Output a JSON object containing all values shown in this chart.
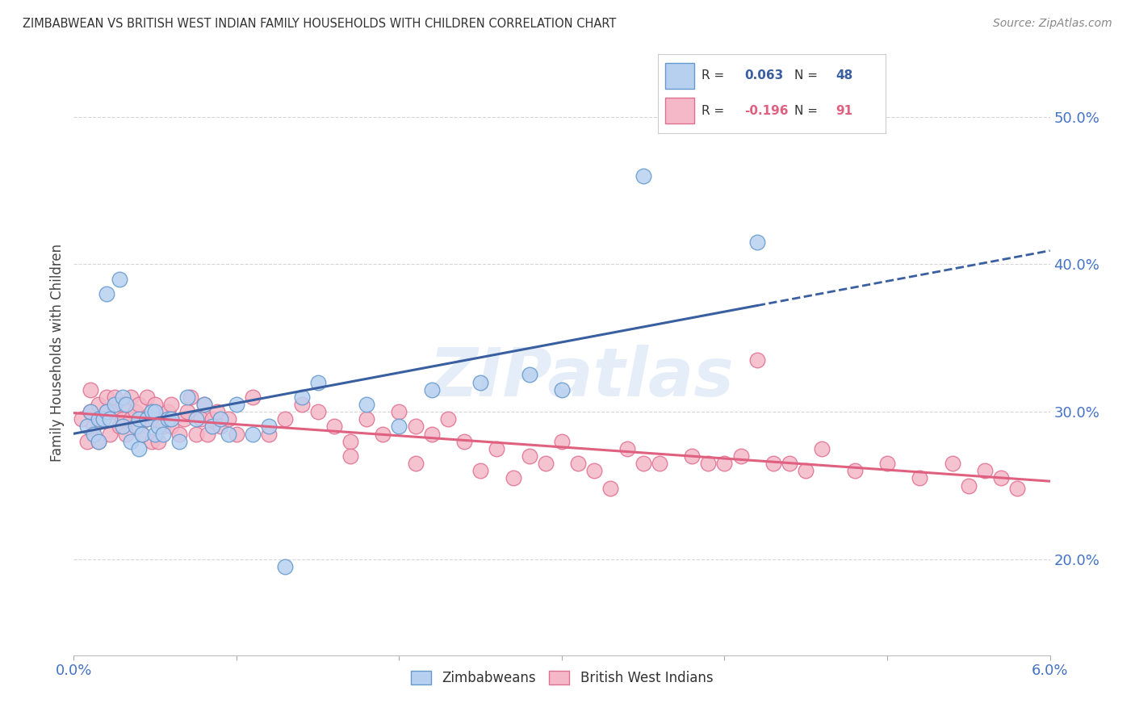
{
  "title": "ZIMBABWEAN VS BRITISH WEST INDIAN FAMILY HOUSEHOLDS WITH CHILDREN CORRELATION CHART",
  "source": "Source: ZipAtlas.com",
  "ylabel": "Family Households with Children",
  "y_tick_labels": [
    "20.0%",
    "30.0%",
    "40.0%",
    "50.0%"
  ],
  "y_tick_values": [
    0.2,
    0.3,
    0.4,
    0.5
  ],
  "x_range": [
    0.0,
    0.06
  ],
  "y_range": [
    0.135,
    0.545
  ],
  "zim_color": "#b8d0f0",
  "zim_edge_color": "#6699cc",
  "bwi_color": "#f4b8c8",
  "bwi_edge_color": "#e07090",
  "zim_line_color": "#3a5fa0",
  "bwi_line_color": "#e06080",
  "zim_R": 0.063,
  "zim_N": 48,
  "bwi_R": -0.196,
  "bwi_N": 91,
  "legend_label_zim": "Zimbabweans",
  "legend_label_bwi": "British West Indians",
  "background_color": "#ffffff",
  "grid_color": "#cccccc",
  "watermark_text": "ZIPatlas",
  "zim_x": [
    0.0008,
    0.001,
    0.0012,
    0.0015,
    0.0015,
    0.0018,
    0.002,
    0.002,
    0.0022,
    0.0025,
    0.0028,
    0.003,
    0.003,
    0.0032,
    0.0035,
    0.0038,
    0.004,
    0.004,
    0.0042,
    0.0045,
    0.0048,
    0.005,
    0.005,
    0.0052,
    0.0055,
    0.0058,
    0.006,
    0.0065,
    0.007,
    0.0075,
    0.008,
    0.0085,
    0.009,
    0.0095,
    0.01,
    0.011,
    0.012,
    0.013,
    0.014,
    0.015,
    0.018,
    0.02,
    0.022,
    0.025,
    0.028,
    0.03,
    0.035,
    0.042
  ],
  "zim_y": [
    0.29,
    0.3,
    0.285,
    0.28,
    0.295,
    0.295,
    0.38,
    0.3,
    0.295,
    0.305,
    0.39,
    0.29,
    0.31,
    0.305,
    0.28,
    0.29,
    0.275,
    0.295,
    0.285,
    0.295,
    0.3,
    0.285,
    0.3,
    0.29,
    0.285,
    0.295,
    0.295,
    0.28,
    0.31,
    0.295,
    0.305,
    0.29,
    0.295,
    0.285,
    0.305,
    0.285,
    0.29,
    0.195,
    0.31,
    0.32,
    0.305,
    0.29,
    0.315,
    0.32,
    0.325,
    0.315,
    0.46,
    0.415
  ],
  "bwi_x": [
    0.0005,
    0.0008,
    0.001,
    0.001,
    0.0012,
    0.0015,
    0.0015,
    0.0018,
    0.002,
    0.002,
    0.0022,
    0.0025,
    0.0025,
    0.0028,
    0.003,
    0.003,
    0.0032,
    0.0035,
    0.0035,
    0.0038,
    0.004,
    0.004,
    0.0042,
    0.0045,
    0.0045,
    0.0048,
    0.005,
    0.005,
    0.0052,
    0.0055,
    0.0058,
    0.006,
    0.006,
    0.0065,
    0.0068,
    0.007,
    0.0072,
    0.0075,
    0.0078,
    0.008,
    0.0082,
    0.0085,
    0.0088,
    0.009,
    0.0095,
    0.01,
    0.011,
    0.012,
    0.013,
    0.014,
    0.015,
    0.016,
    0.017,
    0.018,
    0.019,
    0.02,
    0.021,
    0.022,
    0.023,
    0.024,
    0.026,
    0.028,
    0.029,
    0.03,
    0.032,
    0.034,
    0.036,
    0.038,
    0.04,
    0.042,
    0.044,
    0.046,
    0.048,
    0.05,
    0.052,
    0.054,
    0.055,
    0.056,
    0.057,
    0.058,
    0.039,
    0.041,
    0.043,
    0.045,
    0.035,
    0.033,
    0.031,
    0.027,
    0.025,
    0.021,
    0.017
  ],
  "bwi_y": [
    0.295,
    0.28,
    0.3,
    0.315,
    0.29,
    0.305,
    0.28,
    0.295,
    0.3,
    0.31,
    0.285,
    0.3,
    0.31,
    0.29,
    0.295,
    0.305,
    0.285,
    0.295,
    0.31,
    0.3,
    0.29,
    0.305,
    0.285,
    0.295,
    0.31,
    0.28,
    0.295,
    0.305,
    0.28,
    0.29,
    0.3,
    0.29,
    0.305,
    0.285,
    0.295,
    0.3,
    0.31,
    0.285,
    0.295,
    0.305,
    0.285,
    0.295,
    0.3,
    0.29,
    0.295,
    0.285,
    0.31,
    0.285,
    0.295,
    0.305,
    0.3,
    0.29,
    0.28,
    0.295,
    0.285,
    0.3,
    0.29,
    0.285,
    0.295,
    0.28,
    0.275,
    0.27,
    0.265,
    0.28,
    0.26,
    0.275,
    0.265,
    0.27,
    0.265,
    0.335,
    0.265,
    0.275,
    0.26,
    0.265,
    0.255,
    0.265,
    0.25,
    0.26,
    0.255,
    0.248,
    0.265,
    0.27,
    0.265,
    0.26,
    0.265,
    0.248,
    0.265,
    0.255,
    0.26,
    0.265,
    0.27
  ]
}
